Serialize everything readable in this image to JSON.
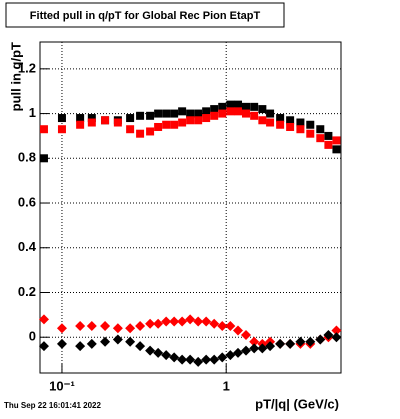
{
  "chart_data": {
    "type": "scatter",
    "title": "Fitted pull in q/pT for Global Rec Pion EtapT",
    "x_label": "pT/|q| (GeV/c)",
    "y_label": "pull in q/pT",
    "footer": "Thu Sep 22 16:01:41 2022",
    "x": [
      0.0777,
      0.1,
      0.129,
      0.152,
      0.183,
      0.219,
      0.26,
      0.299,
      0.344,
      0.385,
      0.431,
      0.482,
      0.539,
      0.603,
      0.675,
      0.755,
      0.845,
      0.946,
      1.06,
      1.18,
      1.32,
      1.48,
      1.66,
      1.85,
      2.13,
      2.45,
      2.83,
      3.25,
      3.74,
      4.19,
      4.69
    ],
    "series": [
      {
        "marker": "square",
        "color": "#000000",
        "values": [
          0.8,
          0.98,
          0.98,
          0.98,
          0.97,
          0.97,
          0.98,
          0.99,
          0.99,
          1.0,
          1.0,
          1.0,
          1.01,
          1.0,
          1.0,
          1.01,
          1.02,
          1.03,
          1.04,
          1.04,
          1.03,
          1.03,
          1.02,
          1.0,
          0.98,
          0.97,
          0.96,
          0.95,
          0.93,
          0.9,
          0.84
        ]
      },
      {
        "marker": "square",
        "color": "#ff0000",
        "values": [
          0.93,
          0.93,
          0.95,
          0.96,
          0.97,
          0.96,
          0.93,
          0.91,
          0.92,
          0.94,
          0.95,
          0.95,
          0.96,
          0.97,
          0.97,
          0.98,
          0.99,
          1.0,
          1.01,
          1.01,
          1.0,
          0.99,
          0.97,
          0.96,
          0.95,
          0.94,
          0.93,
          0.91,
          0.89,
          0.86,
          0.88
        ]
      },
      {
        "marker": "diamond",
        "color": "#ff0000",
        "values": [
          0.08,
          0.04,
          0.05,
          0.05,
          0.05,
          0.04,
          0.04,
          0.05,
          0.06,
          0.06,
          0.07,
          0.07,
          0.07,
          0.08,
          0.07,
          0.07,
          0.06,
          0.05,
          0.05,
          0.03,
          0.01,
          -0.02,
          -0.03,
          -0.02,
          -0.03,
          -0.03,
          -0.03,
          -0.03,
          -0.01,
          0.0,
          0.03
        ]
      },
      {
        "marker": "diamond",
        "color": "#000000",
        "values": [
          -0.04,
          -0.03,
          -0.04,
          -0.03,
          -0.02,
          -0.01,
          -0.02,
          -0.04,
          -0.06,
          -0.07,
          -0.08,
          -0.09,
          -0.1,
          -0.1,
          -0.11,
          -0.1,
          -0.1,
          -0.09,
          -0.08,
          -0.07,
          -0.06,
          -0.05,
          -0.05,
          -0.04,
          -0.03,
          -0.03,
          -0.02,
          -0.02,
          -0.01,
          0.01,
          0.0
        ]
      }
    ],
    "xlim": [
      0.0735,
      5.0
    ],
    "xlog": true,
    "xticks": [
      {
        "value": 0.1,
        "label": "10⁻¹"
      },
      1
    ],
    "ylim": [
      -0.16,
      1.32
    ],
    "yticks": [
      0,
      0.2,
      0.4,
      0.6,
      0.8,
      1,
      1.2
    ],
    "grid": true
  }
}
